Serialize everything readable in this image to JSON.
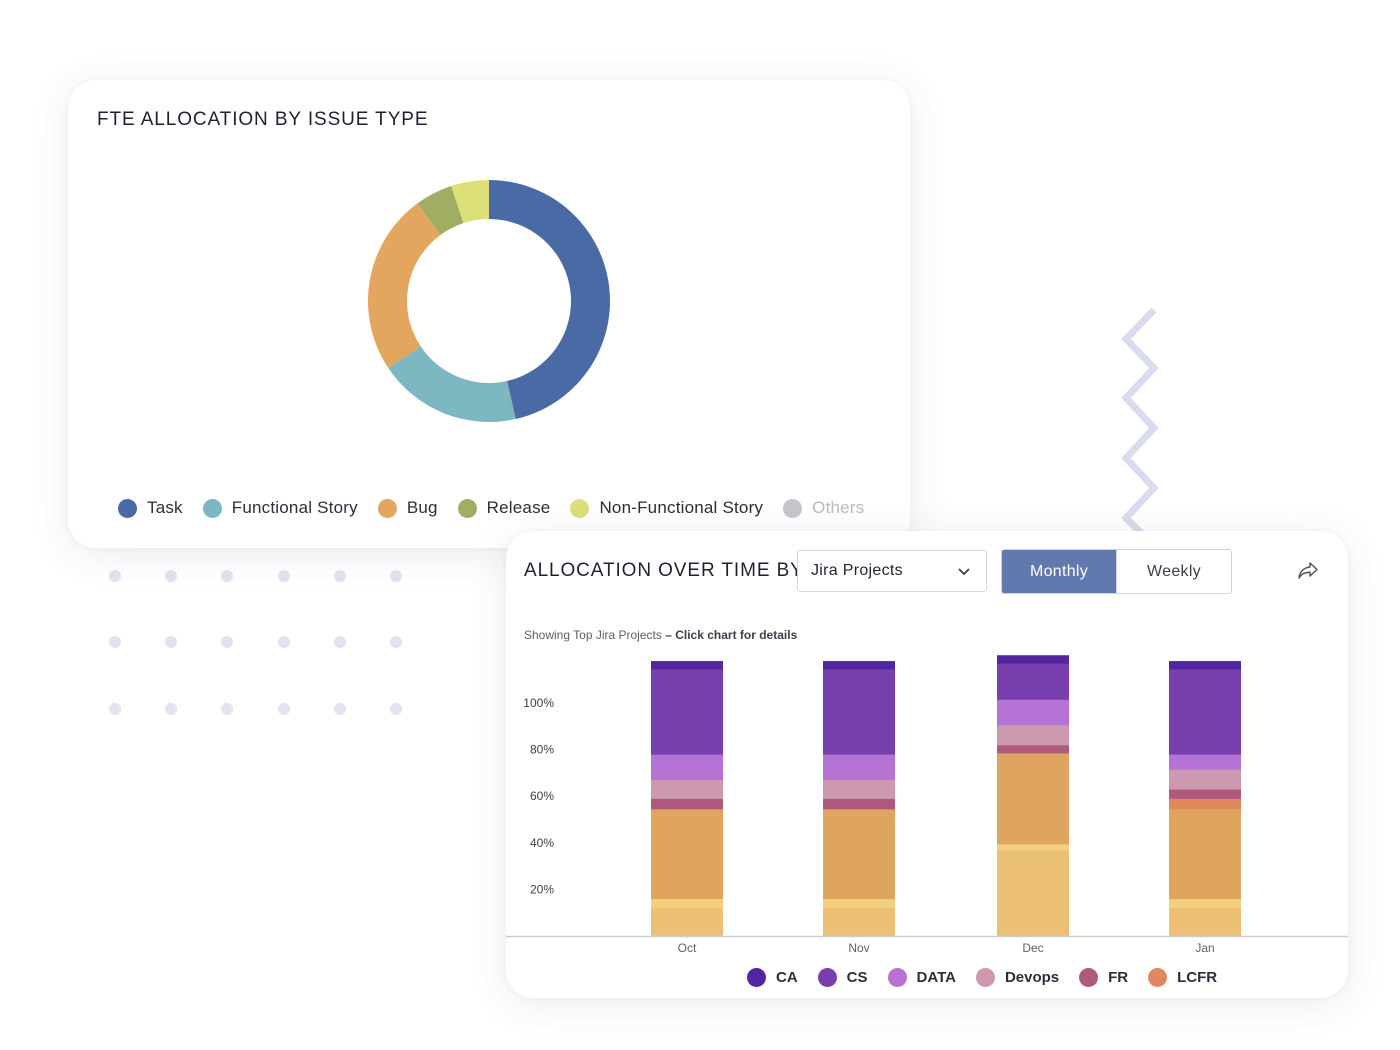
{
  "fte_card": {
    "title": "FTE ALLOCATION BY ISSUE TYPE"
  },
  "allocation_card": {
    "title": "ALLOCATION OVER TIME BY",
    "dropdown": {
      "selected": "Jira Projects"
    },
    "toggle": {
      "monthly": "Monthly",
      "weekly": "Weekly",
      "active": "Monthly"
    },
    "share_icon": "share-arrow-icon",
    "subtitle_prefix": "Showing Top Jira Projects",
    "subtitle_suffix": " – Click chart for details"
  },
  "decor": {
    "dot_grid_color": "#e1e3ef",
    "zigzag_color": "#d8dcee"
  },
  "chart_data": [
    {
      "type": "pie",
      "variant": "donut",
      "title": "FTE ALLOCATION BY ISSUE TYPE",
      "categories": [
        "Task",
        "Functional Story",
        "Bug",
        "Release",
        "Non-Functional Story",
        "Others"
      ],
      "values": [
        46,
        19,
        24,
        5,
        5,
        0
      ],
      "colors": [
        "#4a6aa6",
        "#7db7c1",
        "#e3a65f",
        "#a0ad62",
        "#dddf78",
        "#c4c6cc"
      ],
      "legend_position": "bottom",
      "legend_muted": [
        "Others"
      ]
    },
    {
      "type": "bar",
      "stacked": true,
      "title": "ALLOCATION OVER TIME BY",
      "categories": [
        "Oct",
        "Nov",
        "Dec",
        "Jan"
      ],
      "y_ticks": [
        "20%",
        "40%",
        "60%",
        "80%",
        "100%"
      ],
      "ylim": [
        0,
        118
      ],
      "grid": false,
      "legend_position": "bottom",
      "series": [
        {
          "name": "",
          "color": "#ebc075",
          "values": [
            12,
            12,
            37,
            12
          ]
        },
        {
          "name": "",
          "color": "#f2d07d",
          "values": [
            4,
            4,
            2.5,
            4
          ]
        },
        {
          "name": "",
          "color": "#dfa45d",
          "values": [
            38.5,
            38.5,
            39,
            38.5
          ]
        },
        {
          "name": "LCFR",
          "color": "#df8a5e",
          "values": [
            0,
            0,
            0,
            4.5
          ]
        },
        {
          "name": "FR",
          "color": "#ae5a7e",
          "values": [
            4.5,
            4.5,
            3.5,
            4
          ]
        },
        {
          "name": "Devops",
          "color": "#cd99af",
          "values": [
            8,
            8,
            8.5,
            8.5
          ]
        },
        {
          "name": "DATA",
          "color": "#b673d5",
          "values": [
            11,
            11,
            11,
            6.5
          ]
        },
        {
          "name": "CS",
          "color": "#7a3fae",
          "values": [
            36.5,
            36.5,
            15.5,
            36.5
          ]
        },
        {
          "name": "CA",
          "color": "#5226a0",
          "values": [
            3.5,
            3.5,
            3.5,
            3.5
          ]
        }
      ],
      "legend": [
        {
          "name": "CA",
          "color": "#5226a0"
        },
        {
          "name": "CS",
          "color": "#7a3fae"
        },
        {
          "name": "DATA",
          "color": "#b673d5"
        },
        {
          "name": "Devops",
          "color": "#cd99af"
        },
        {
          "name": "FR",
          "color": "#ae5a7e"
        },
        {
          "name": "LCFR",
          "color": "#df8a5e"
        }
      ]
    }
  ]
}
